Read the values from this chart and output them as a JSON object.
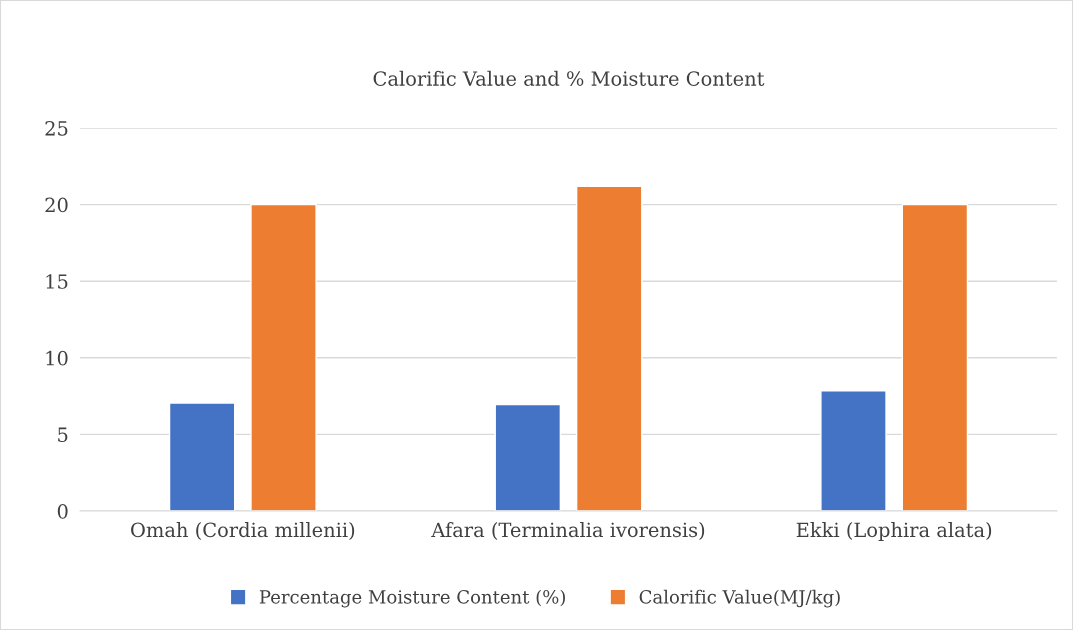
{
  "chart_data": {
    "type": "bar",
    "title": "Calorific Value and % Moisture Content",
    "categories": [
      "Omah (Cordia millenii)",
      "Afara (Terminalia ivorensis)",
      "Ekki (Lophira alata)"
    ],
    "series": [
      {
        "name": "Percentage Moisture Content (%)",
        "color": "#4472c4",
        "values": [
          7.05,
          6.95,
          7.85
        ]
      },
      {
        "name": "Calorific Value(MJ/kg)",
        "color": "#ed7d31",
        "values": [
          20.0,
          21.2,
          20.0
        ]
      }
    ],
    "ylim": [
      0,
      25
    ],
    "yticks": [
      0,
      5,
      10,
      15,
      20,
      25
    ],
    "grid": "y",
    "legend": "bottom"
  }
}
